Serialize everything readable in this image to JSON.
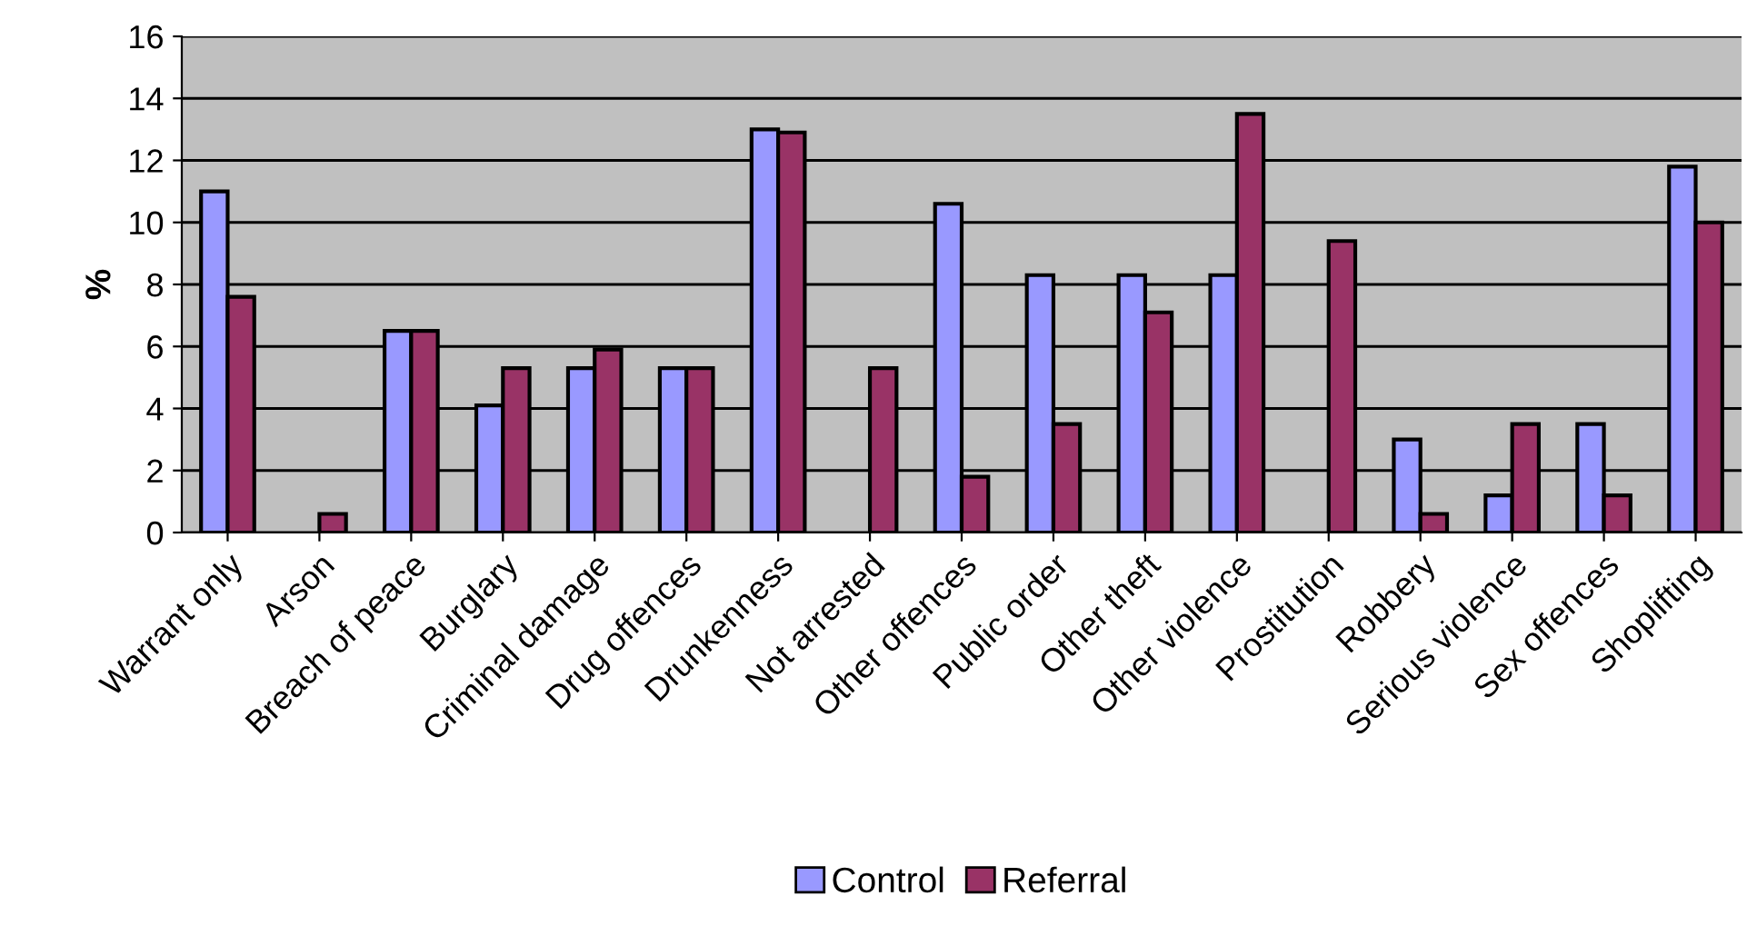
{
  "chart_data": {
    "type": "bar",
    "ylabel": "%",
    "categories": [
      "Warrant only",
      "Arson",
      "Breach of peace",
      "Burglary",
      "Criminal damage",
      "Drug offences",
      "Drunkenness",
      "Not arrested",
      "Other offences",
      "Public order",
      "Other theft",
      "Other violence",
      "Prostitution",
      "Robbery",
      "Serious violence",
      "Sex offences",
      "Shoplifting"
    ],
    "series": [
      {
        "name": "Control",
        "color": "#9999ff",
        "values": [
          11.0,
          null,
          6.5,
          4.1,
          5.3,
          5.3,
          13.0,
          null,
          10.6,
          8.3,
          8.3,
          8.3,
          null,
          3.0,
          1.2,
          3.5,
          11.8
        ]
      },
      {
        "name": "Referral",
        "color": "#993366",
        "values": [
          7.6,
          0.6,
          6.5,
          5.3,
          5.9,
          5.3,
          12.9,
          5.3,
          1.8,
          3.5,
          7.1,
          13.5,
          9.4,
          0.6,
          3.5,
          1.2,
          10.0
        ]
      }
    ],
    "ylim": [
      0,
      16
    ],
    "yticks": [
      0,
      2,
      4,
      6,
      8,
      10,
      12,
      14,
      16
    ],
    "grid": "y",
    "legend": "bottom"
  }
}
